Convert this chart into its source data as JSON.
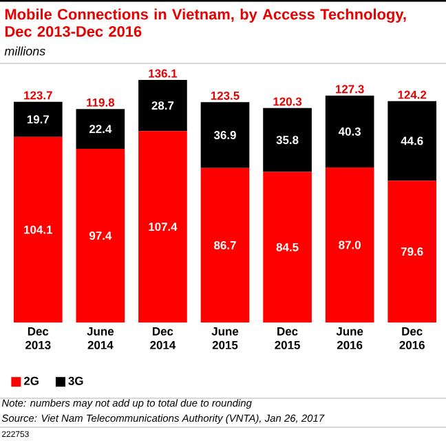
{
  "chart_data": {
    "type": "bar",
    "title": "Mobile Connections in Vietnam, by Access Technology, Dec 2013-Dec 2016",
    "subtitle": "millions",
    "categories": [
      "Dec 2013",
      "June 2014",
      "Dec 2014",
      "June 2015",
      "Dec 2015",
      "June 2016",
      "Dec 2016"
    ],
    "stacked": true,
    "series": [
      {
        "name": "2G",
        "color": "#ff0000",
        "values": [
          104.1,
          97.4,
          107.4,
          86.7,
          84.5,
          87.0,
          79.6
        ],
        "value_labels": [
          "104.1",
          "97.4",
          "107.4",
          "86.7",
          "84.5",
          "87.0",
          "79.6"
        ]
      },
      {
        "name": "3G",
        "color": "#000000",
        "values": [
          19.7,
          22.4,
          28.7,
          36.9,
          35.8,
          40.3,
          44.6
        ],
        "value_labels": [
          "19.7",
          "22.4",
          "28.7",
          "36.9",
          "35.8",
          "40.3",
          "44.6"
        ]
      }
    ],
    "totals": [
      "123.7",
      "119.8",
      "136.1",
      "123.5",
      "120.3",
      "127.3",
      "124.2"
    ],
    "legend": "bottom left",
    "annotations": [
      "Note: numbers may not add up to total due to rounding",
      "Source: Viet Nam Telecommunications Authority (VNTA), Jan 26, 2017",
      "222753"
    ]
  }
}
